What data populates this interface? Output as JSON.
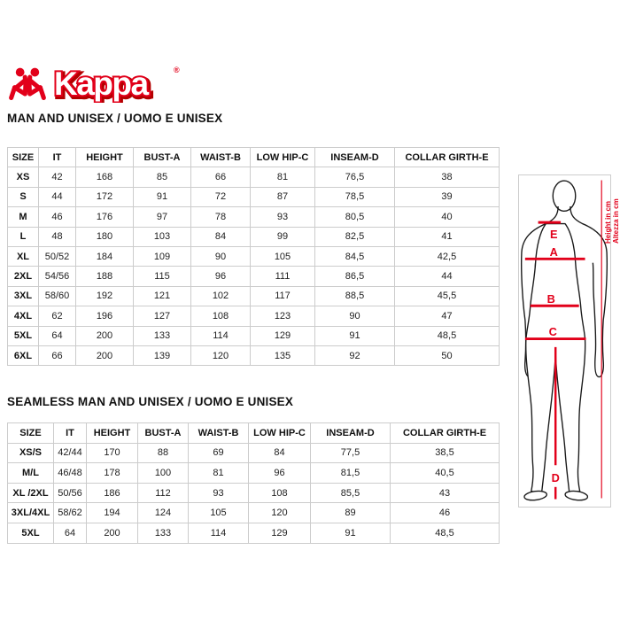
{
  "logo": {
    "brand": "Kappa",
    "registered_mark": "®",
    "color": "#e2001a"
  },
  "sections": [
    {
      "title": "MAN AND UNISEX / UOMO E UNISEX",
      "table": {
        "headers": [
          "SIZE",
          "IT",
          "HEIGHT",
          "BUST-A",
          "WAIST-B",
          "LOW HIP-C",
          "INSEAM-D",
          "COLLAR GIRTH-E"
        ],
        "rows": [
          [
            "XS",
            "42",
            "168",
            "85",
            "66",
            "81",
            "76,5",
            "38"
          ],
          [
            "S",
            "44",
            "172",
            "91",
            "72",
            "87",
            "78,5",
            "39"
          ],
          [
            "M",
            "46",
            "176",
            "97",
            "78",
            "93",
            "80,5",
            "40"
          ],
          [
            "L",
            "48",
            "180",
            "103",
            "84",
            "99",
            "82,5",
            "41"
          ],
          [
            "XL",
            "50/52",
            "184",
            "109",
            "90",
            "105",
            "84,5",
            "42,5"
          ],
          [
            "2XL",
            "54/56",
            "188",
            "115",
            "96",
            "111",
            "86,5",
            "44"
          ],
          [
            "3XL",
            "58/60",
            "192",
            "121",
            "102",
            "117",
            "88,5",
            "45,5"
          ],
          [
            "4XL",
            "62",
            "196",
            "127",
            "108",
            "123",
            "90",
            "47"
          ],
          [
            "5XL",
            "64",
            "200",
            "133",
            "114",
            "129",
            "91",
            "48,5"
          ],
          [
            "6XL",
            "66",
            "200",
            "139",
            "120",
            "135",
            "92",
            "50"
          ]
        ]
      }
    },
    {
      "title": "SEAMLESS MAN AND UNISEX / UOMO E UNISEX",
      "table": {
        "headers": [
          "SIZE",
          "IT",
          "HEIGHT",
          "BUST-A",
          "WAIST-B",
          "LOW HIP-C",
          "INSEAM-D",
          "COLLAR GIRTH-E"
        ],
        "rows": [
          [
            "XS/S",
            "42/44",
            "170",
            "88",
            "69",
            "84",
            "77,5",
            "38,5"
          ],
          [
            "M/L",
            "46/48",
            "178",
            "100",
            "81",
            "96",
            "81,5",
            "40,5"
          ],
          [
            "XL /2XL",
            "50/56",
            "186",
            "112",
            "93",
            "108",
            "85,5",
            "43"
          ],
          [
            "3XL/4XL",
            "58/62",
            "194",
            "124",
            "105",
            "120",
            "89",
            "46"
          ],
          [
            "5XL",
            "64",
            "200",
            "133",
            "114",
            "129",
            "91",
            "48,5"
          ]
        ]
      }
    }
  ],
  "figure": {
    "measure_labels": {
      "collar": "E",
      "bust": "A",
      "waist": "B",
      "low_hip": "C",
      "inseam": "D"
    },
    "height_caption_en": "Height in cm",
    "height_caption_it": "Altezza in cm"
  },
  "colors": {
    "accent_red": "#e2001a",
    "table_border": "#cccccc",
    "text": "#111111"
  }
}
